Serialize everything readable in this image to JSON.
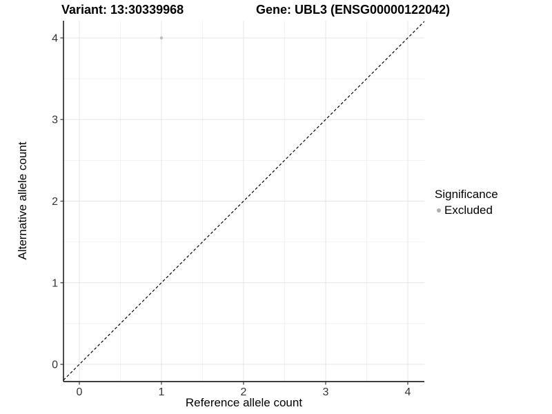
{
  "header": {
    "variant_title": "Variant: 13:30339968",
    "gene_title": "Gene: UBL3 (ENSG00000122042)"
  },
  "chart_data": {
    "type": "scatter",
    "xlabel": "Reference allele count",
    "ylabel": "Alternative allele count",
    "xlim": [
      -0.193,
      4.202
    ],
    "ylim": [
      -0.211,
      4.211
    ],
    "x_ticks": [
      0,
      1,
      2,
      3,
      4
    ],
    "y_ticks": [
      0,
      1,
      2,
      3,
      4
    ],
    "x_minor_ticks": [
      0.5,
      1.5,
      2.5,
      3.5
    ],
    "y_minor_ticks": [
      0.5,
      1.5,
      2.5,
      3.5
    ],
    "grid": true,
    "legend_position": "right",
    "identity_line": {
      "slope": 1,
      "intercept": 0,
      "style": "dashed"
    },
    "series": [
      {
        "name": "Excluded",
        "color": "#bdbdbd",
        "points": [
          {
            "x": 1,
            "y": 4
          }
        ]
      }
    ]
  },
  "legend": {
    "title": "Significance",
    "items": [
      {
        "label": "Excluded",
        "color": "#aeaeae"
      }
    ]
  },
  "colors": {
    "grid_major": "#e5e5e5",
    "grid_minor": "#f2f2f2",
    "axis_line": "#000000",
    "tick_mark": "#333333",
    "tick_label": "#333333",
    "abline": "#000000"
  }
}
